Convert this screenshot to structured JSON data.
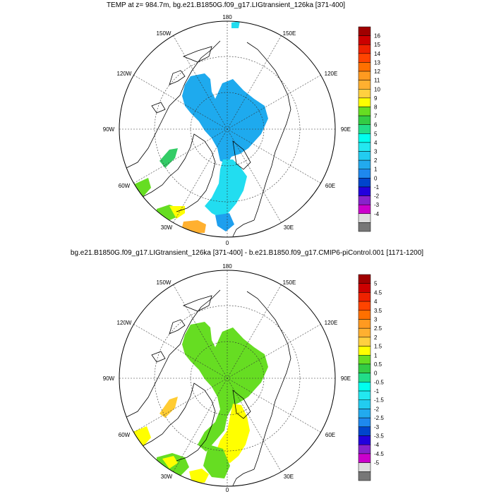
{
  "panels": [
    {
      "title": "TEMP at z= 984.7m, bg.e21.B1850G.f09_g17.LIGtransient_126ka [371-400]",
      "lon_labels": {
        "top": "180",
        "top_left": "150W",
        "top_right": "150E",
        "upper_left": "120W",
        "upper_right": "120E",
        "left": "90W",
        "right": "90E",
        "lower_left": "60W",
        "lower_right": "60E",
        "bottom_left": "30W",
        "bottom_right": "30E",
        "bottom": "0"
      },
      "colorbar_labels": [
        "16",
        "15",
        "14",
        "13",
        "12",
        "11",
        "10",
        "9",
        "8",
        "7",
        "6",
        "5",
        "4",
        "3",
        "2",
        "1",
        "0",
        "-1",
        "-2",
        "-3",
        "-4"
      ]
    },
    {
      "title": "bg.e21.B1850G.f09_g17.LIGtransient_126ka [371-400] - b.e21.B1850.f09_g17.CMIP6-piControl.001 [1171-1200]",
      "lon_labels": {
        "top": "180",
        "top_left": "150W",
        "top_right": "150E",
        "upper_left": "120W",
        "upper_right": "120E",
        "left": "90W",
        "right": "90E",
        "lower_left": "60W",
        "lower_right": "60E",
        "bottom_left": "30W",
        "bottom_right": "30E",
        "bottom": "0"
      },
      "colorbar_labels": [
        "5",
        "4.5",
        "4",
        "3.5",
        "3",
        "2.5",
        "2",
        "1.5",
        "1",
        "0.5",
        "0",
        "-0.5",
        "-1",
        "-1.5",
        "-2",
        "-2.5",
        "-3",
        "-3.5",
        "-4",
        "-4.5",
        "-5"
      ]
    }
  ],
  "colors": {
    "palette": [
      "#a00000",
      "#cc0000",
      "#ee2200",
      "#ff4400",
      "#ff7000",
      "#ff9a20",
      "#ffb030",
      "#ffd040",
      "#ffff00",
      "#66dd22",
      "#33cc44",
      "#22dd88",
      "#00ffee",
      "#22e8f0",
      "#22ccf0",
      "#22aaee",
      "#1e88ee",
      "#0044cc",
      "#2200dd",
      "#8822cc",
      "#cc00cc",
      "#dddddd",
      "#777777"
    ],
    "panel1_main": "#1eaaee",
    "panel1_lower": "#22ddf0",
    "panel2_main": "#66dd22",
    "panel2_yellow": "#ffff00"
  }
}
